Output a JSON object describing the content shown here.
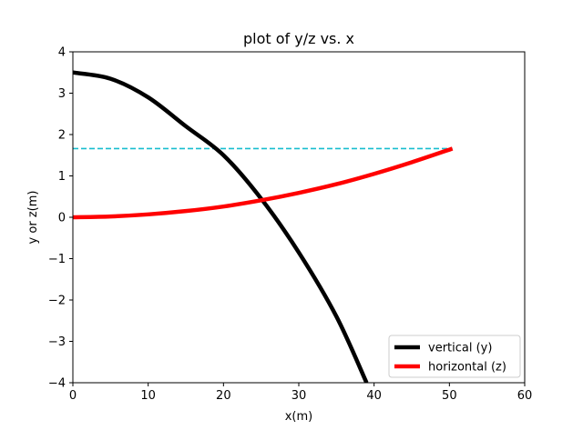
{
  "chart_data": {
    "type": "line",
    "title": "plot of y/z vs. x",
    "xlabel": "x(m)",
    "ylabel": "y or z(m)",
    "xlim": [
      0,
      60
    ],
    "ylim": [
      -4,
      4
    ],
    "xticks": [
      0,
      10,
      20,
      30,
      40,
      50,
      60
    ],
    "yticks": [
      -4,
      -3,
      -2,
      -1,
      0,
      1,
      2,
      3,
      4
    ],
    "xtick_labels": [
      "0",
      "10",
      "20",
      "30",
      "40",
      "50",
      "60"
    ],
    "ytick_labels": [
      "−4",
      "−3",
      "−2",
      "−1",
      "0",
      "1",
      "2",
      "3",
      "4"
    ],
    "grid": false,
    "legend_position": "bottom-right",
    "series": [
      {
        "name": "vertical (y)",
        "color": "#000000",
        "style": "solid",
        "x": [
          0,
          5,
          10,
          15,
          20,
          25,
          30,
          35,
          39
        ],
        "y": [
          3.5,
          3.35,
          2.9,
          2.2,
          1.5,
          0.45,
          -0.85,
          -2.4,
          -4.0
        ]
      },
      {
        "name": "horizontal (z)",
        "color": "#ff0000",
        "style": "solid",
        "x": [
          0,
          5,
          10,
          15,
          20,
          25,
          30,
          35,
          40,
          45,
          50.4
        ],
        "y": [
          0,
          0.02,
          0.07,
          0.15,
          0.26,
          0.41,
          0.59,
          0.8,
          1.05,
          1.33,
          1.66
        ]
      },
      {
        "color": "#17becf",
        "style": "dashed",
        "x": [
          0,
          50.4
        ],
        "y": [
          1.66,
          1.66
        ]
      }
    ]
  }
}
